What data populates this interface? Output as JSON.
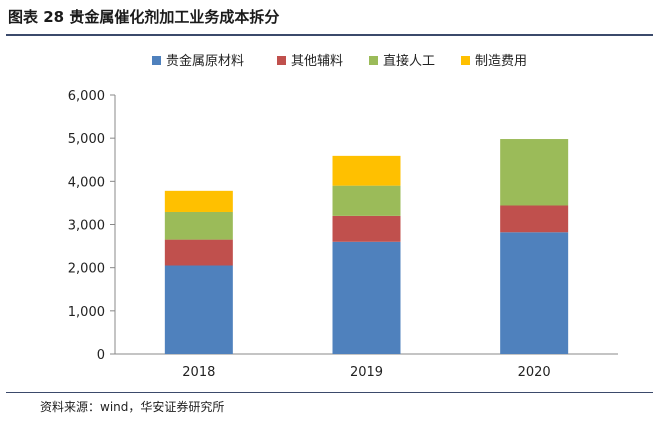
{
  "header": {
    "title": "图表 28 贵金属催化剂加工业务成本拆分"
  },
  "footer": {
    "source": "资料来源：wind，华安证券研究所"
  },
  "chart_data": {
    "type": "bar",
    "stacked": true,
    "categories": [
      "2018",
      "2019",
      "2020"
    ],
    "series": [
      {
        "name": "贵金属原材料",
        "color": "#4f81bd",
        "values": [
          2050,
          2600,
          2820
        ]
      },
      {
        "name": "其他辅料",
        "color": "#c0504d",
        "values": [
          600,
          600,
          620
        ]
      },
      {
        "name": "直接人工",
        "color": "#9bbb59",
        "values": [
          640,
          700,
          1540
        ]
      },
      {
        "name": "制造费用",
        "color": "#ffc000",
        "values": [
          490,
          690,
          0
        ]
      }
    ],
    "series_colors_override": [
      null,
      null,
      null,
      null
    ],
    "ylim": [
      0,
      6000
    ],
    "yticks": [
      0,
      1000,
      2000,
      3000,
      4000,
      5000,
      6000
    ],
    "ytick_labels": [
      "0",
      "1,000",
      "2,000",
      "3,000",
      "4,000",
      "5,000",
      "6,000"
    ],
    "legend_position": "top",
    "grid": false
  }
}
